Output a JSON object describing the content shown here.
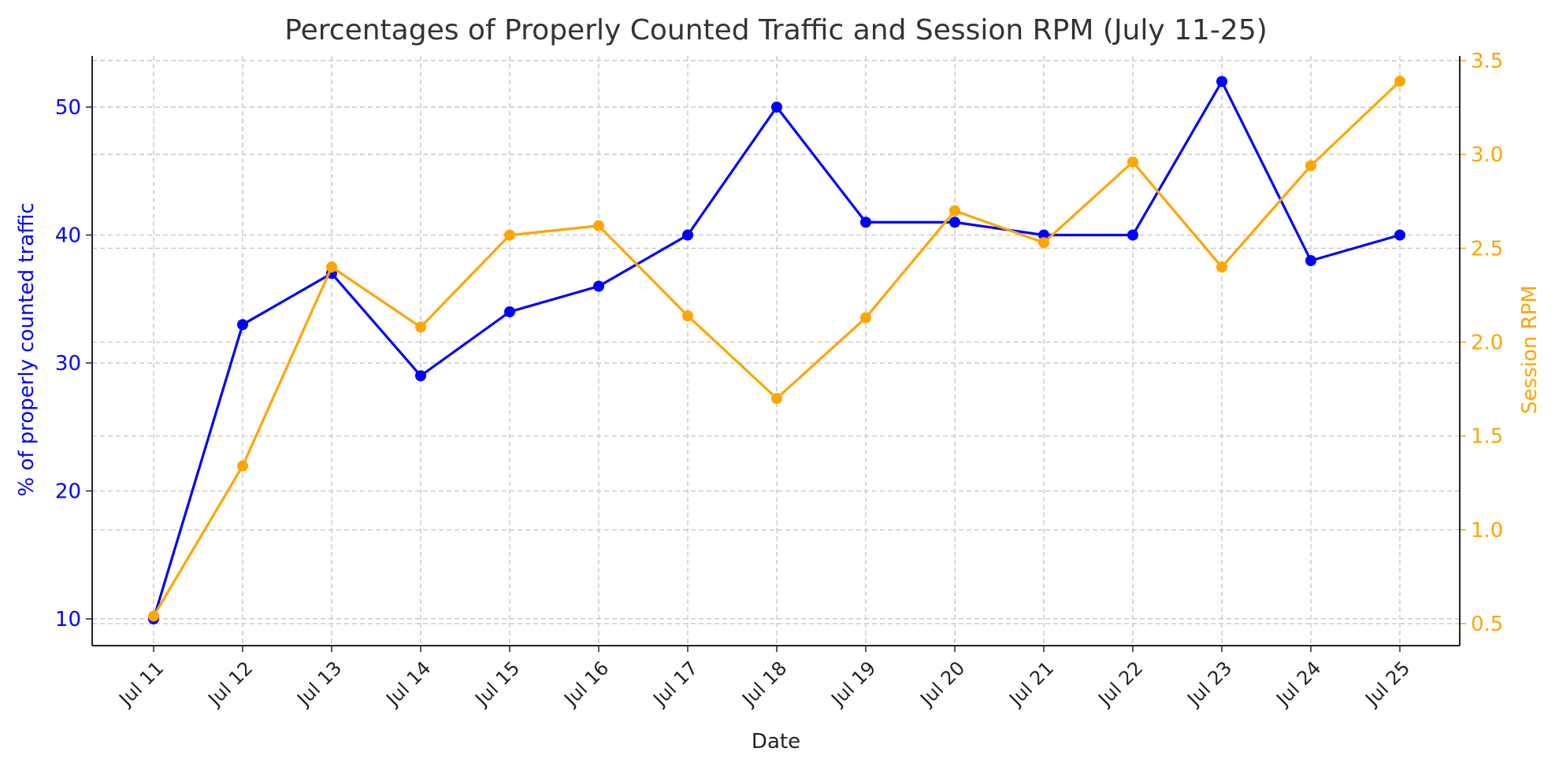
{
  "chart_data": {
    "type": "line",
    "title": "Percentages of Properly Counted Traffic and Session RPM (July 11-25)",
    "xlabel": "Date",
    "ylabel": "% of properly counted traffic",
    "y2label": "Session RPM",
    "categories": [
      "Jul 11",
      "Jul 12",
      "Jul 13",
      "Jul 14",
      "Jul 15",
      "Jul 16",
      "Jul 17",
      "Jul 18",
      "Jul 19",
      "Jul 20",
      "Jul 21",
      "Jul 22",
      "Jul 23",
      "Jul 24",
      "Jul 25"
    ],
    "series": [
      {
        "name": "% of properly counted traffic",
        "axis": "left",
        "color": "#0000ff",
        "values": [
          10,
          33,
          37,
          29,
          34,
          36,
          40,
          50,
          41,
          41,
          40,
          40,
          52,
          38,
          40
        ]
      },
      {
        "name": "Session RPM",
        "axis": "right",
        "color": "#ffa500",
        "values": [
          0.54,
          1.34,
          2.4,
          2.08,
          2.57,
          2.62,
          2.14,
          1.7,
          2.13,
          2.7,
          2.53,
          2.96,
          2.4,
          2.94,
          3.39
        ]
      }
    ],
    "yticks": [
      10,
      20,
      30,
      40,
      50
    ],
    "y2ticks": [
      "0.5",
      "1.0",
      "1.5",
      "2.0",
      "2.5",
      "3.0",
      "3.5"
    ],
    "ylim": [
      8.3,
      54
    ],
    "y2lim": [
      0.4,
      3.5
    ],
    "grid": true
  }
}
